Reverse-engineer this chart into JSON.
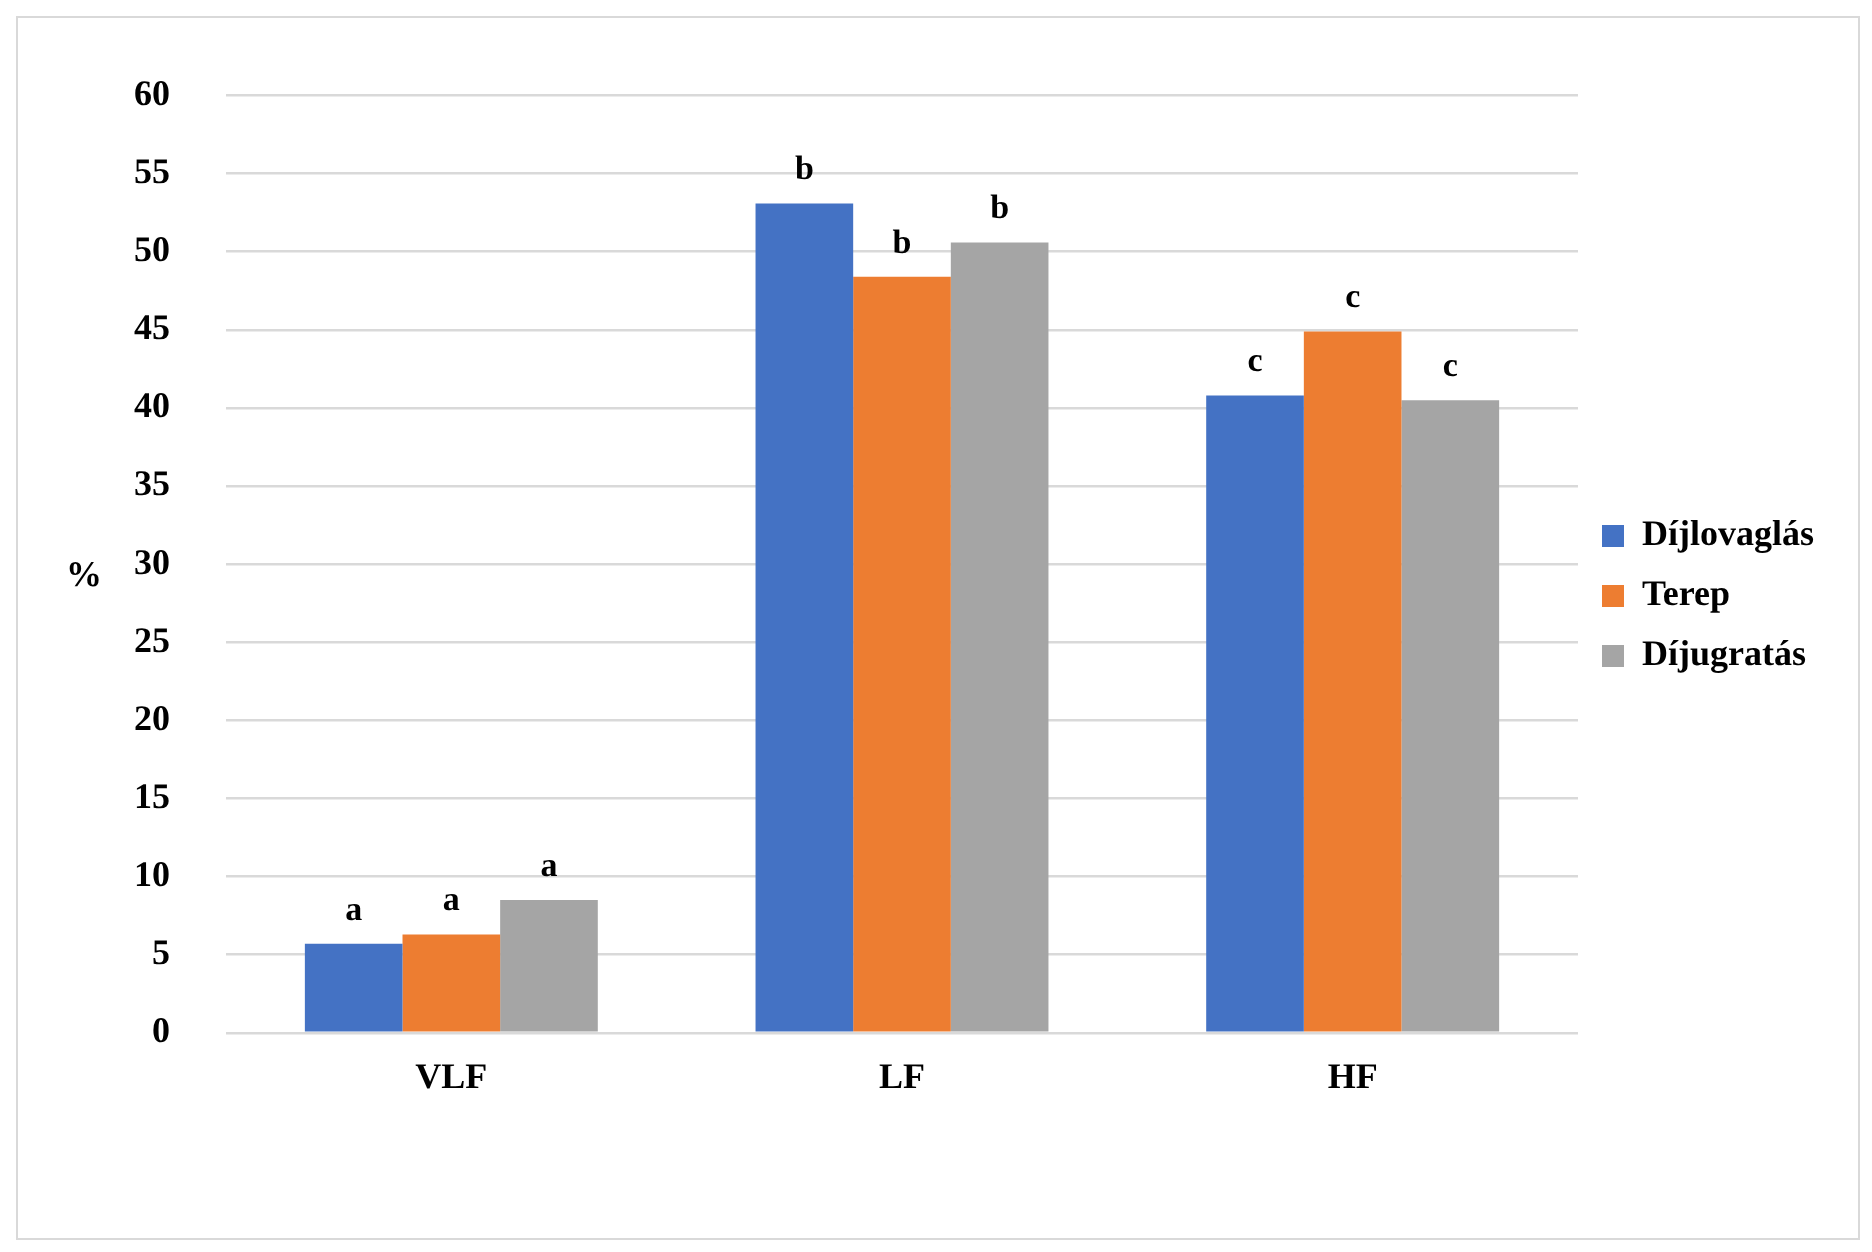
{
  "chart_data": {
    "type": "bar",
    "ylabel": "%",
    "categories": [
      "VLF",
      "LF",
      "HF"
    ],
    "series": [
      {
        "name": "Díjlovaglás",
        "color": "#4472c4",
        "values": [
          5.7,
          53.1,
          40.8
        ],
        "value_labels": [
          "a",
          "b",
          "c"
        ]
      },
      {
        "name": "Terep",
        "color": "#ed7d31",
        "values": [
          6.3,
          48.4,
          44.9
        ],
        "value_labels": [
          "a",
          "b",
          "c"
        ]
      },
      {
        "name": "Díjugratás",
        "color": "#a5a5a5",
        "values": [
          8.5,
          50.6,
          40.5
        ],
        "value_labels": [
          "a",
          "b",
          "c"
        ]
      }
    ],
    "ylim": [
      0,
      60
    ],
    "yticks": [
      0,
      5,
      10,
      15,
      20,
      25,
      30,
      35,
      40,
      45,
      50,
      55,
      60
    ],
    "grid": "y",
    "legend": "right"
  }
}
